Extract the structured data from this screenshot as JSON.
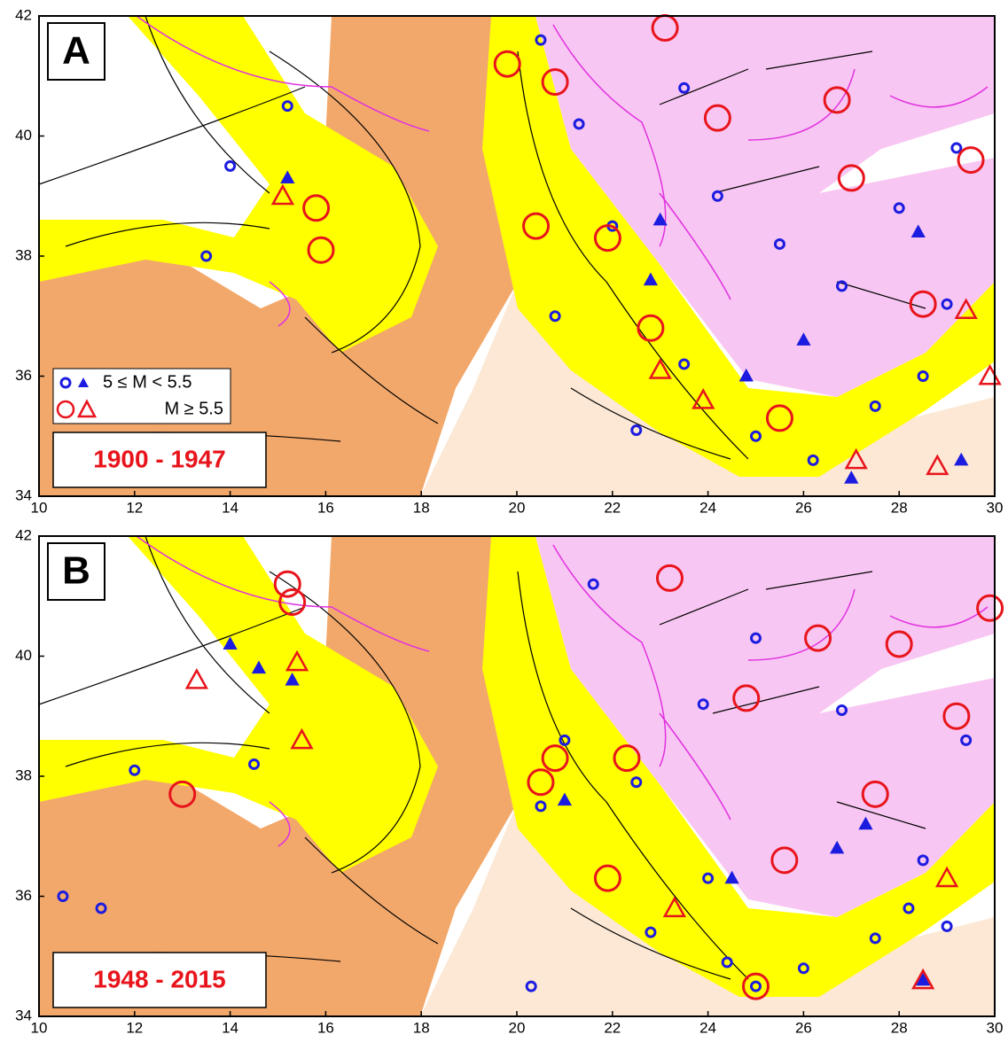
{
  "legend": {
    "small": "5 ≤ M < 5.5",
    "large": "M ≥ 5.5",
    "small_color": "#1c1ce0",
    "large_color": "#e8141c"
  },
  "panels": [
    {
      "label": "A",
      "period": "1900 - 1947",
      "xlim": [
        10,
        30
      ],
      "ylim": [
        34,
        42
      ],
      "xticks": [
        10,
        12,
        14,
        16,
        18,
        20,
        22,
        24,
        26,
        28,
        30
      ],
      "yticks": [
        34,
        36,
        38,
        40,
        42
      ],
      "small_circles": [
        [
          20.5,
          41.6
        ],
        [
          21.3,
          40.2
        ],
        [
          22,
          38.5
        ],
        [
          24.2,
          39
        ],
        [
          25.5,
          38.2
        ],
        [
          26.8,
          37.5
        ],
        [
          23.5,
          36.2
        ],
        [
          27.5,
          35.5
        ],
        [
          28.5,
          36
        ],
        [
          29,
          37.2
        ],
        [
          13.5,
          38
        ],
        [
          14,
          39.5
        ],
        [
          15.2,
          40.5
        ],
        [
          20.8,
          37
        ],
        [
          22.5,
          35.1
        ],
        [
          25,
          35
        ],
        [
          26.2,
          34.6
        ],
        [
          28,
          38.8
        ],
        [
          29.2,
          39.8
        ],
        [
          23.5,
          40.8
        ]
      ],
      "small_triangles": [
        [
          22.8,
          37.6
        ],
        [
          24.8,
          36
        ],
        [
          26,
          36.6
        ],
        [
          27,
          34.3
        ],
        [
          29.3,
          34.6
        ],
        [
          23,
          38.6
        ],
        [
          15.2,
          39.3
        ],
        [
          28.4,
          38.4
        ]
      ],
      "large_circles": [
        [
          23.1,
          41.8
        ],
        [
          21.9,
          38.3
        ],
        [
          20.4,
          38.5
        ],
        [
          15.8,
          38.8
        ],
        [
          15.9,
          38.1
        ],
        [
          25.5,
          35.3
        ],
        [
          27,
          39.3
        ],
        [
          26.7,
          40.6
        ],
        [
          24.2,
          40.3
        ],
        [
          28.5,
          37.2
        ],
        [
          22.8,
          36.8
        ],
        [
          19.8,
          41.2
        ],
        [
          20.8,
          40.9
        ],
        [
          29.5,
          39.6
        ]
      ],
      "large_triangles": [
        [
          15.1,
          39
        ],
        [
          23,
          36.1
        ],
        [
          27.1,
          34.6
        ],
        [
          28.8,
          34.5
        ],
        [
          29.4,
          37.1
        ],
        [
          23.9,
          35.6
        ],
        [
          29.9,
          36
        ]
      ]
    },
    {
      "label": "B",
      "period": "1948 - 2015",
      "xlim": [
        10,
        30
      ],
      "ylim": [
        34,
        42
      ],
      "xticks": [
        10,
        12,
        14,
        16,
        18,
        20,
        22,
        24,
        26,
        28,
        30
      ],
      "yticks": [
        34,
        36,
        38,
        40,
        42
      ],
      "small_circles": [
        [
          10.5,
          36
        ],
        [
          11.3,
          35.8
        ],
        [
          12,
          38.1
        ],
        [
          14.5,
          38.2
        ],
        [
          20.5,
          37.5
        ],
        [
          21,
          38.6
        ],
        [
          22.5,
          37.9
        ],
        [
          24,
          36.3
        ],
        [
          25,
          34.5
        ],
        [
          26,
          34.8
        ],
        [
          27.5,
          35.3
        ],
        [
          28.5,
          36.6
        ],
        [
          29.4,
          38.6
        ],
        [
          23.9,
          39.2
        ],
        [
          25,
          40.3
        ],
        [
          26.8,
          39.1
        ],
        [
          20.3,
          34.5
        ],
        [
          22.8,
          35.4
        ],
        [
          24.4,
          34.9
        ],
        [
          21.6,
          41.2
        ],
        [
          28.2,
          35.8
        ],
        [
          29,
          35.5
        ]
      ],
      "small_triangles": [
        [
          14,
          40.2
        ],
        [
          14.6,
          39.8
        ],
        [
          15.3,
          39.6
        ],
        [
          21,
          37.6
        ],
        [
          24.5,
          36.3
        ],
        [
          26.7,
          36.8
        ],
        [
          28.5,
          34.6
        ],
        [
          27.3,
          37.2
        ]
      ],
      "large_circles": [
        [
          15.3,
          40.9
        ],
        [
          15.2,
          41.2
        ],
        [
          13,
          37.7
        ],
        [
          20.5,
          37.9
        ],
        [
          20.8,
          38.3
        ],
        [
          21.9,
          36.3
        ],
        [
          22.3,
          38.3
        ],
        [
          25.6,
          36.6
        ],
        [
          24.8,
          39.3
        ],
        [
          26.3,
          40.3
        ],
        [
          28,
          40.2
        ],
        [
          29.9,
          40.8
        ],
        [
          29.2,
          39
        ],
        [
          25,
          34.5
        ],
        [
          27.5,
          37.7
        ],
        [
          23.2,
          41.3
        ]
      ],
      "large_triangles": [
        [
          13.3,
          39.6
        ],
        [
          15.5,
          38.6
        ],
        [
          23.3,
          35.8
        ],
        [
          28.5,
          34.6
        ],
        [
          29,
          36.3
        ],
        [
          15.4,
          39.9
        ]
      ]
    }
  ]
}
